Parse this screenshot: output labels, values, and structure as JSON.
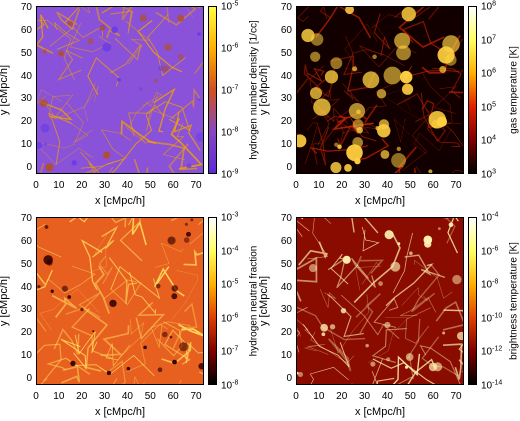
{
  "panels": [
    {
      "colorbar_label": "hydrogen number density [1/cc]",
      "colorbar_ticks": [
        {
          "base": "10",
          "exp": "-5"
        },
        {
          "base": "10",
          "exp": "-6"
        },
        {
          "base": "10",
          "exp": "-7"
        },
        {
          "base": "10",
          "exp": "-8"
        },
        {
          "base": "10",
          "exp": "-9"
        }
      ],
      "colors": {
        "bg": "#8a52d8",
        "mid": "#b0502c",
        "hi": "#f0a000",
        "lo": "#6a3ce8"
      },
      "colorbar_gradient": [
        "#ffff40",
        "#ffb000",
        "#d05020",
        "#8848c0",
        "#5a2ad8"
      ]
    },
    {
      "colorbar_label": "gas temperature [K]",
      "colorbar_ticks": [
        {
          "base": "10",
          "exp": "8"
        },
        {
          "base": "10",
          "exp": "7"
        },
        {
          "base": "10",
          "exp": "6"
        },
        {
          "base": "10",
          "exp": "5"
        },
        {
          "base": "10",
          "exp": "4"
        },
        {
          "base": "10",
          "exp": "3"
        }
      ],
      "colors": {
        "bg": "#120000",
        "mid": "#c02000",
        "hi": "#ffd040",
        "lo": "#000000"
      },
      "colorbar_gradient": [
        "#ffffff",
        "#ffff60",
        "#ffb000",
        "#e02000",
        "#800000",
        "#000000"
      ]
    },
    {
      "colorbar_label": "hydrogen neutral fraction",
      "colorbar_ticks": [
        {
          "base": "10",
          "exp": "-3"
        },
        {
          "base": "10",
          "exp": "-4"
        },
        {
          "base": "10",
          "exp": "-5"
        },
        {
          "base": "10",
          "exp": "-6"
        },
        {
          "base": "10",
          "exp": "-7"
        },
        {
          "base": "10",
          "exp": "-8"
        }
      ],
      "colors": {
        "bg": "#e86020",
        "mid": "#f09040",
        "hi": "#ffe060",
        "lo": "#300000"
      },
      "colorbar_gradient": [
        "#ffffff",
        "#ffff60",
        "#ffb000",
        "#e04000",
        "#800000",
        "#000000"
      ]
    },
    {
      "colorbar_label": "brightness temperature [K]",
      "colorbar_ticks": [
        {
          "base": "10",
          "exp": "-4"
        },
        {
          "base": "10",
          "exp": "-6"
        },
        {
          "base": "10",
          "exp": "-8"
        },
        {
          "base": "10",
          "exp": "-10"
        },
        {
          "base": "10",
          "exp": "-12"
        },
        {
          "base": "10",
          "exp": "-14"
        }
      ],
      "colors": {
        "bg": "#8a0c00",
        "mid": "#d04010",
        "hi": "#fff0b0",
        "lo": "#3a0000"
      },
      "colorbar_gradient": [
        "#ffffff",
        "#ffff60",
        "#ffb000",
        "#e04000",
        "#800000",
        "#000000"
      ]
    }
  ],
  "axes": {
    "xlabel": "x [cMpc/h]",
    "ylabel": "y [cMpc/h]",
    "xticks": [
      "0",
      "10",
      "20",
      "30",
      "40",
      "50",
      "60",
      "70"
    ],
    "yticks": [
      "70",
      "60",
      "50",
      "40",
      "30",
      "20",
      "10",
      "0"
    ]
  }
}
